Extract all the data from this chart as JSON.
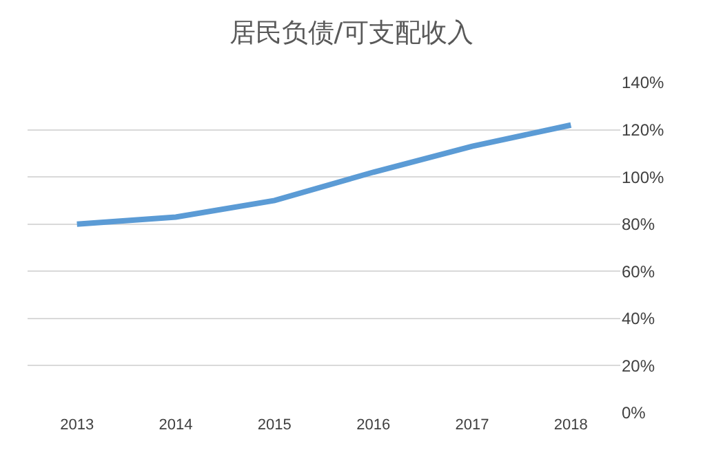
{
  "chart_data": {
    "type": "line",
    "title": "居民负债/可支配收入",
    "categories": [
      "2013",
      "2014",
      "2015",
      "2016",
      "2017",
      "2018"
    ],
    "series": [
      {
        "color": "#5b9bd5",
        "values": [
          80,
          83,
          90,
          102,
          113,
          122
        ]
      }
    ],
    "ylim": [
      0,
      140
    ],
    "yticks": [
      {
        "value": 0,
        "label": "0%"
      },
      {
        "value": 20,
        "label": "20%"
      },
      {
        "value": 40,
        "label": "40%"
      },
      {
        "value": 60,
        "label": "60%"
      },
      {
        "value": 80,
        "label": "80%"
      },
      {
        "value": 100,
        "label": "100%"
      },
      {
        "value": 120,
        "label": "120%"
      },
      {
        "value": 140,
        "label": "140%"
      }
    ],
    "grid": "y",
    "marker": "none",
    "line_style": "solid"
  }
}
